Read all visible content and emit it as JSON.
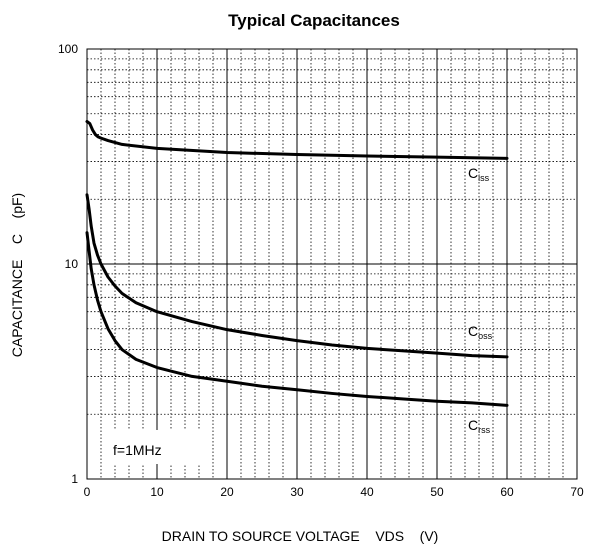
{
  "chart_data": {
    "type": "line",
    "title": "Typical Capacitances",
    "xlabel": "DRAIN TO SOURCE VOLTAGE    VDS    (V)",
    "ylabel": "CAPACITANCE    C    (pF)",
    "xlim": [
      0,
      70
    ],
    "ylim": [
      1,
      100
    ],
    "y_scale": "log",
    "x_ticks": [
      "0",
      "10",
      "20",
      "30",
      "40",
      "50",
      "60",
      "70"
    ],
    "y_ticks": [
      "1",
      "10",
      "100"
    ],
    "grid": true,
    "annotation_text": "f=1MHz",
    "series": [
      {
        "name": "Ciss",
        "label_main": "C",
        "label_sub": "iss",
        "x": [
          0,
          0.4,
          0.8,
          1.2,
          1.6,
          2,
          3,
          5,
          10,
          20,
          30,
          40,
          50,
          60
        ],
        "y": [
          46,
          45,
          42,
          40,
          39,
          38.5,
          37.5,
          36,
          34.5,
          33,
          32.3,
          31.8,
          31.4,
          31
        ]
      },
      {
        "name": "Coss",
        "label_main": "C",
        "label_sub": "oss",
        "x": [
          0,
          0.3,
          0.6,
          1,
          1.5,
          2,
          3,
          4,
          5,
          7,
          10,
          15,
          20,
          25,
          30,
          35,
          40,
          45,
          50,
          55,
          60
        ],
        "y": [
          21,
          18,
          15,
          12.5,
          11,
          10,
          8.7,
          7.9,
          7.3,
          6.6,
          6.0,
          5.4,
          4.95,
          4.65,
          4.4,
          4.2,
          4.05,
          3.95,
          3.85,
          3.75,
          3.7
        ],
        "label_x": 55.5,
        "label_y": 4.6
      },
      {
        "name": "Crss",
        "label_main": "C",
        "label_sub": "rss",
        "x": [
          0,
          0.3,
          0.6,
          1,
          1.5,
          2,
          3,
          4,
          5,
          7,
          10,
          15,
          20,
          25,
          30,
          35,
          40,
          45,
          50,
          55,
          60
        ],
        "y": [
          14,
          11.5,
          9.5,
          8.0,
          6.8,
          6.0,
          5.0,
          4.4,
          4.0,
          3.6,
          3.3,
          3.0,
          2.85,
          2.7,
          2.6,
          2.5,
          2.42,
          2.36,
          2.3,
          2.26,
          2.2
        ],
        "label_x": 55.5,
        "label_y": 1.75
      }
    ],
    "colors": {
      "line": "#000000",
      "grid": "#000000"
    }
  }
}
